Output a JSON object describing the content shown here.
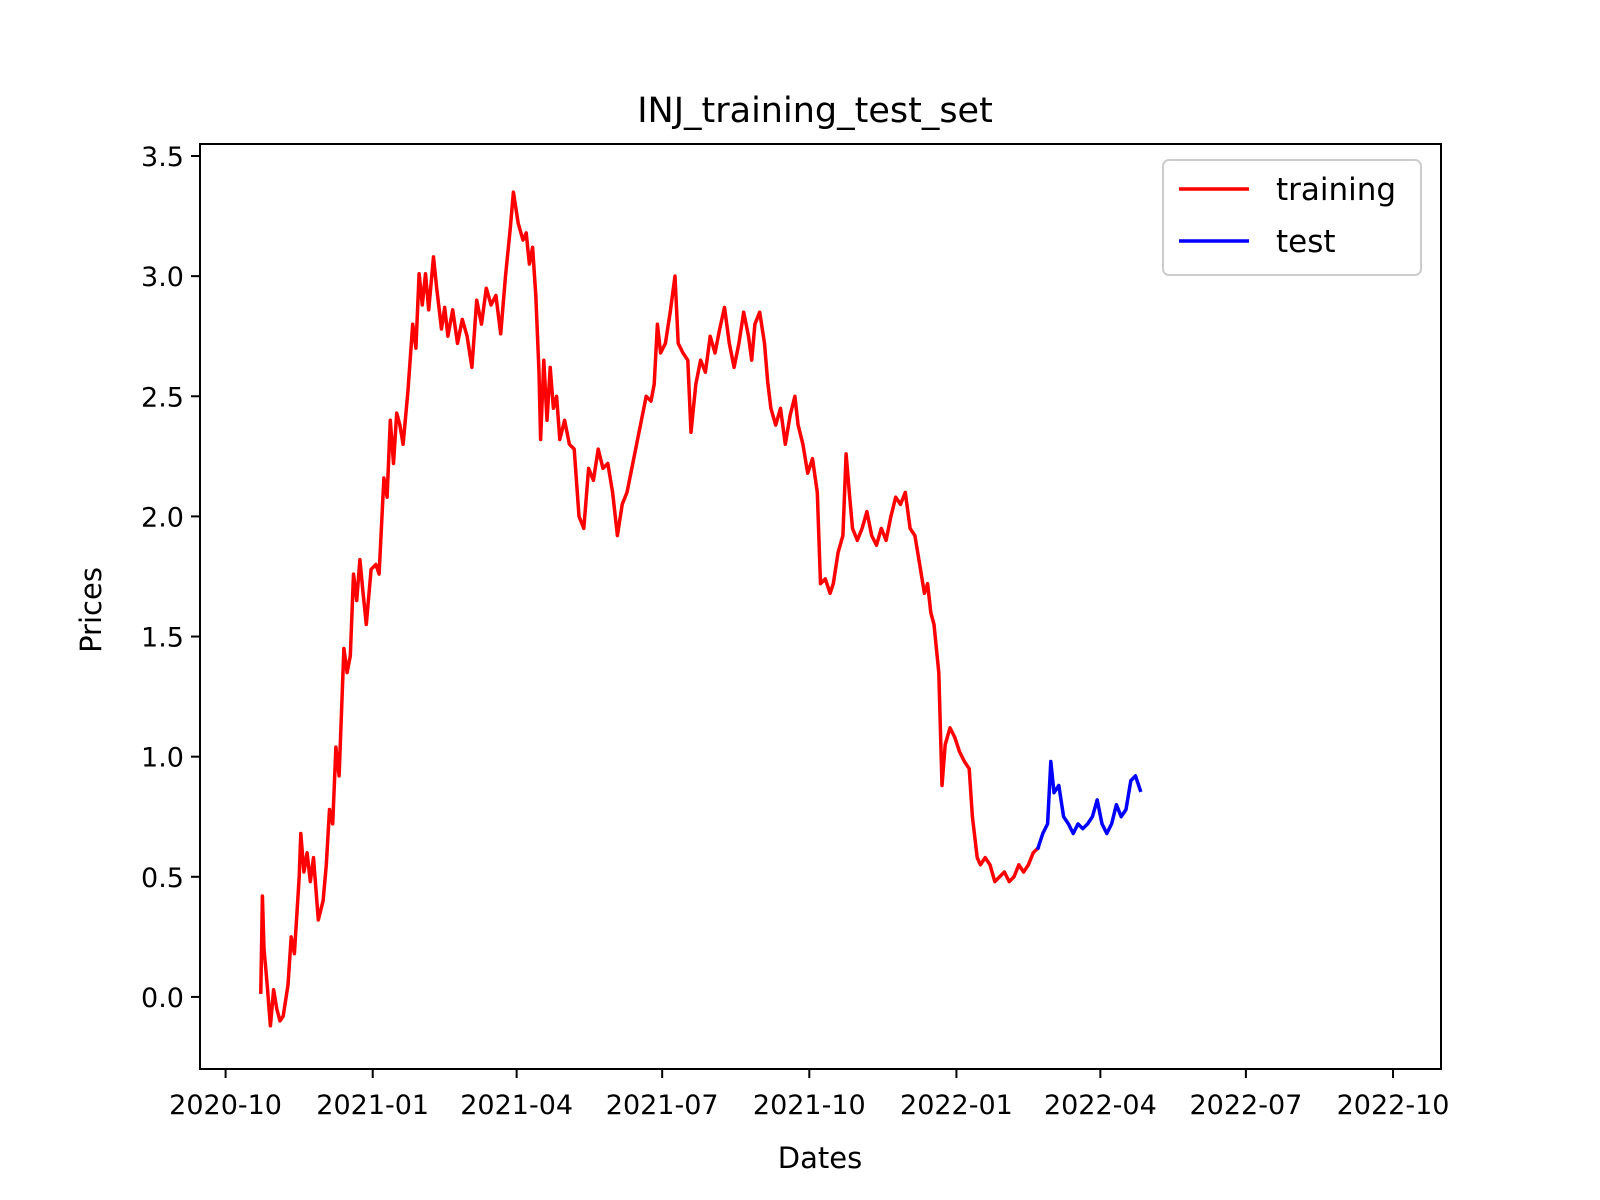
{
  "chart_data": {
    "type": "line",
    "title": "INJ_training_test_set",
    "xlabel": "Dates",
    "ylabel": "Prices",
    "xlim": [
      "2020-09-15",
      "2022-10-31"
    ],
    "ylim": [
      -0.3,
      3.55
    ],
    "xticks": [
      {
        "date": "2020-10-01",
        "label": "2020-10"
      },
      {
        "date": "2021-01-01",
        "label": "2021-01"
      },
      {
        "date": "2021-04-01",
        "label": "2021-04"
      },
      {
        "date": "2021-07-01",
        "label": "2021-07"
      },
      {
        "date": "2021-10-01",
        "label": "2021-10"
      },
      {
        "date": "2022-01-01",
        "label": "2022-01"
      },
      {
        "date": "2022-04-01",
        "label": "2022-04"
      },
      {
        "date": "2022-07-01",
        "label": "2022-07"
      },
      {
        "date": "2022-10-01",
        "label": "2022-10"
      }
    ],
    "yticks": [
      {
        "value": 0.0,
        "label": "0.0"
      },
      {
        "value": 0.5,
        "label": "0.5"
      },
      {
        "value": 1.0,
        "label": "1.0"
      },
      {
        "value": 1.5,
        "label": "1.5"
      },
      {
        "value": 2.0,
        "label": "2.0"
      },
      {
        "value": 2.5,
        "label": "2.5"
      },
      {
        "value": 3.0,
        "label": "3.0"
      },
      {
        "value": 3.5,
        "label": "3.5"
      }
    ],
    "grid": false,
    "legend_position": "top-right",
    "series": [
      {
        "name": "training",
        "color": "#ff0000",
        "points": [
          [
            "2020-10-23",
            0.02
          ],
          [
            "2020-10-24",
            0.42
          ],
          [
            "2020-10-25",
            0.2
          ],
          [
            "2020-10-27",
            0.05
          ],
          [
            "2020-10-29",
            -0.12
          ],
          [
            "2020-10-31",
            0.03
          ],
          [
            "2020-11-02",
            -0.05
          ],
          [
            "2020-11-04",
            -0.1
          ],
          [
            "2020-11-06",
            -0.08
          ],
          [
            "2020-11-09",
            0.05
          ],
          [
            "2020-11-11",
            0.25
          ],
          [
            "2020-11-13",
            0.18
          ],
          [
            "2020-11-16",
            0.5
          ],
          [
            "2020-11-17",
            0.68
          ],
          [
            "2020-11-19",
            0.52
          ],
          [
            "2020-11-21",
            0.6
          ],
          [
            "2020-11-23",
            0.48
          ],
          [
            "2020-11-25",
            0.58
          ],
          [
            "2020-11-28",
            0.32
          ],
          [
            "2020-12-01",
            0.4
          ],
          [
            "2020-12-03",
            0.55
          ],
          [
            "2020-12-05",
            0.78
          ],
          [
            "2020-12-07",
            0.72
          ],
          [
            "2020-12-09",
            1.04
          ],
          [
            "2020-12-11",
            0.92
          ],
          [
            "2020-12-14",
            1.45
          ],
          [
            "2020-12-16",
            1.35
          ],
          [
            "2020-12-18",
            1.42
          ],
          [
            "2020-12-20",
            1.76
          ],
          [
            "2020-12-22",
            1.65
          ],
          [
            "2020-12-24",
            1.82
          ],
          [
            "2020-12-26",
            1.68
          ],
          [
            "2020-12-28",
            1.55
          ],
          [
            "2020-12-31",
            1.78
          ],
          [
            "2021-01-03",
            1.8
          ],
          [
            "2021-01-05",
            1.76
          ],
          [
            "2021-01-08",
            2.16
          ],
          [
            "2021-01-10",
            2.08
          ],
          [
            "2021-01-12",
            2.4
          ],
          [
            "2021-01-14",
            2.22
          ],
          [
            "2021-01-16",
            2.43
          ],
          [
            "2021-01-18",
            2.38
          ],
          [
            "2021-01-20",
            2.3
          ],
          [
            "2021-01-23",
            2.52
          ],
          [
            "2021-01-26",
            2.8
          ],
          [
            "2021-01-28",
            2.7
          ],
          [
            "2021-01-30",
            3.01
          ],
          [
            "2021-02-01",
            2.88
          ],
          [
            "2021-02-03",
            3.01
          ],
          [
            "2021-02-05",
            2.86
          ],
          [
            "2021-02-08",
            3.08
          ],
          [
            "2021-02-10",
            2.95
          ],
          [
            "2021-02-13",
            2.78
          ],
          [
            "2021-02-15",
            2.87
          ],
          [
            "2021-02-17",
            2.75
          ],
          [
            "2021-02-20",
            2.86
          ],
          [
            "2021-02-23",
            2.72
          ],
          [
            "2021-02-26",
            2.82
          ],
          [
            "2021-03-01",
            2.75
          ],
          [
            "2021-03-04",
            2.62
          ],
          [
            "2021-03-07",
            2.9
          ],
          [
            "2021-03-10",
            2.8
          ],
          [
            "2021-03-13",
            2.95
          ],
          [
            "2021-03-16",
            2.88
          ],
          [
            "2021-03-19",
            2.92
          ],
          [
            "2021-03-22",
            2.76
          ],
          [
            "2021-03-25",
            3.0
          ],
          [
            "2021-03-28",
            3.2
          ],
          [
            "2021-03-30",
            3.35
          ],
          [
            "2021-04-02",
            3.22
          ],
          [
            "2021-04-05",
            3.15
          ],
          [
            "2021-04-07",
            3.18
          ],
          [
            "2021-04-09",
            3.05
          ],
          [
            "2021-04-11",
            3.12
          ],
          [
            "2021-04-13",
            2.92
          ],
          [
            "2021-04-15",
            2.6
          ],
          [
            "2021-04-16",
            2.32
          ],
          [
            "2021-04-18",
            2.65
          ],
          [
            "2021-04-20",
            2.4
          ],
          [
            "2021-04-22",
            2.62
          ],
          [
            "2021-04-24",
            2.45
          ],
          [
            "2021-04-26",
            2.5
          ],
          [
            "2021-04-28",
            2.32
          ],
          [
            "2021-05-01",
            2.4
          ],
          [
            "2021-05-04",
            2.3
          ],
          [
            "2021-05-07",
            2.28
          ],
          [
            "2021-05-10",
            2.0
          ],
          [
            "2021-05-13",
            1.95
          ],
          [
            "2021-05-16",
            2.2
          ],
          [
            "2021-05-19",
            2.15
          ],
          [
            "2021-05-22",
            2.28
          ],
          [
            "2021-05-25",
            2.2
          ],
          [
            "2021-05-28",
            2.22
          ],
          [
            "2021-05-31",
            2.1
          ],
          [
            "2021-06-03",
            1.92
          ],
          [
            "2021-06-06",
            2.05
          ],
          [
            "2021-06-09",
            2.1
          ],
          [
            "2021-06-12",
            2.2
          ],
          [
            "2021-06-15",
            2.3
          ],
          [
            "2021-06-18",
            2.4
          ],
          [
            "2021-06-21",
            2.5
          ],
          [
            "2021-06-24",
            2.48
          ],
          [
            "2021-06-26",
            2.55
          ],
          [
            "2021-06-28",
            2.8
          ],
          [
            "2021-06-30",
            2.68
          ],
          [
            "2021-07-03",
            2.72
          ],
          [
            "2021-07-06",
            2.85
          ],
          [
            "2021-07-09",
            3.0
          ],
          [
            "2021-07-11",
            2.72
          ],
          [
            "2021-07-14",
            2.68
          ],
          [
            "2021-07-17",
            2.65
          ],
          [
            "2021-07-19",
            2.35
          ],
          [
            "2021-07-22",
            2.55
          ],
          [
            "2021-07-25",
            2.65
          ],
          [
            "2021-07-28",
            2.6
          ],
          [
            "2021-07-31",
            2.75
          ],
          [
            "2021-08-03",
            2.68
          ],
          [
            "2021-08-06",
            2.78
          ],
          [
            "2021-08-09",
            2.87
          ],
          [
            "2021-08-12",
            2.72
          ],
          [
            "2021-08-15",
            2.62
          ],
          [
            "2021-08-18",
            2.72
          ],
          [
            "2021-08-21",
            2.85
          ],
          [
            "2021-08-24",
            2.75
          ],
          [
            "2021-08-26",
            2.65
          ],
          [
            "2021-08-28",
            2.8
          ],
          [
            "2021-08-31",
            2.85
          ],
          [
            "2021-09-03",
            2.72
          ],
          [
            "2021-09-05",
            2.56
          ],
          [
            "2021-09-07",
            2.45
          ],
          [
            "2021-09-10",
            2.38
          ],
          [
            "2021-09-13",
            2.45
          ],
          [
            "2021-09-16",
            2.3
          ],
          [
            "2021-09-19",
            2.42
          ],
          [
            "2021-09-22",
            2.5
          ],
          [
            "2021-09-24",
            2.38
          ],
          [
            "2021-09-27",
            2.3
          ],
          [
            "2021-09-30",
            2.18
          ],
          [
            "2021-10-03",
            2.24
          ],
          [
            "2021-10-06",
            2.1
          ],
          [
            "2021-10-08",
            1.72
          ],
          [
            "2021-10-11",
            1.74
          ],
          [
            "2021-10-14",
            1.68
          ],
          [
            "2021-10-16",
            1.72
          ],
          [
            "2021-10-19",
            1.85
          ],
          [
            "2021-10-22",
            1.92
          ],
          [
            "2021-10-24",
            2.26
          ],
          [
            "2021-10-26",
            2.1
          ],
          [
            "2021-10-28",
            1.95
          ],
          [
            "2021-10-31",
            1.9
          ],
          [
            "2021-11-03",
            1.95
          ],
          [
            "2021-11-06",
            2.02
          ],
          [
            "2021-11-09",
            1.92
          ],
          [
            "2021-11-12",
            1.88
          ],
          [
            "2021-11-15",
            1.95
          ],
          [
            "2021-11-18",
            1.9
          ],
          [
            "2021-11-21",
            2.0
          ],
          [
            "2021-11-24",
            2.08
          ],
          [
            "2021-11-27",
            2.05
          ],
          [
            "2021-11-30",
            2.1
          ],
          [
            "2021-12-03",
            1.95
          ],
          [
            "2021-12-06",
            1.92
          ],
          [
            "2021-12-09",
            1.8
          ],
          [
            "2021-12-12",
            1.68
          ],
          [
            "2021-12-14",
            1.72
          ],
          [
            "2021-12-16",
            1.6
          ],
          [
            "2021-12-18",
            1.55
          ],
          [
            "2021-12-21",
            1.35
          ],
          [
            "2021-12-23",
            0.88
          ],
          [
            "2021-12-25",
            1.05
          ],
          [
            "2021-12-28",
            1.12
          ],
          [
            "2021-12-31",
            1.08
          ],
          [
            "2022-01-03",
            1.02
          ],
          [
            "2022-01-06",
            0.98
          ],
          [
            "2022-01-09",
            0.95
          ],
          [
            "2022-01-11",
            0.75
          ],
          [
            "2022-01-14",
            0.58
          ],
          [
            "2022-01-16",
            0.55
          ],
          [
            "2022-01-19",
            0.58
          ],
          [
            "2022-01-22",
            0.55
          ],
          [
            "2022-01-25",
            0.48
          ],
          [
            "2022-01-28",
            0.5
          ],
          [
            "2022-01-31",
            0.52
          ],
          [
            "2022-02-03",
            0.48
          ],
          [
            "2022-02-06",
            0.5
          ],
          [
            "2022-02-09",
            0.55
          ],
          [
            "2022-02-12",
            0.52
          ],
          [
            "2022-02-15",
            0.55
          ],
          [
            "2022-02-18",
            0.6
          ],
          [
            "2022-02-21",
            0.62
          ]
        ]
      },
      {
        "name": "test",
        "color": "#0000ff",
        "points": [
          [
            "2022-02-21",
            0.62
          ],
          [
            "2022-02-24",
            0.68
          ],
          [
            "2022-02-27",
            0.72
          ],
          [
            "2022-03-01",
            0.98
          ],
          [
            "2022-03-03",
            0.85
          ],
          [
            "2022-03-06",
            0.88
          ],
          [
            "2022-03-09",
            0.75
          ],
          [
            "2022-03-12",
            0.72
          ],
          [
            "2022-03-15",
            0.68
          ],
          [
            "2022-03-18",
            0.72
          ],
          [
            "2022-03-21",
            0.7
          ],
          [
            "2022-03-24",
            0.72
          ],
          [
            "2022-03-27",
            0.75
          ],
          [
            "2022-03-30",
            0.82
          ],
          [
            "2022-04-02",
            0.72
          ],
          [
            "2022-04-05",
            0.68
          ],
          [
            "2022-04-08",
            0.72
          ],
          [
            "2022-04-11",
            0.8
          ],
          [
            "2022-04-14",
            0.75
          ],
          [
            "2022-04-17",
            0.78
          ],
          [
            "2022-04-20",
            0.9
          ],
          [
            "2022-04-23",
            0.92
          ],
          [
            "2022-04-26",
            0.86
          ]
        ]
      }
    ]
  }
}
